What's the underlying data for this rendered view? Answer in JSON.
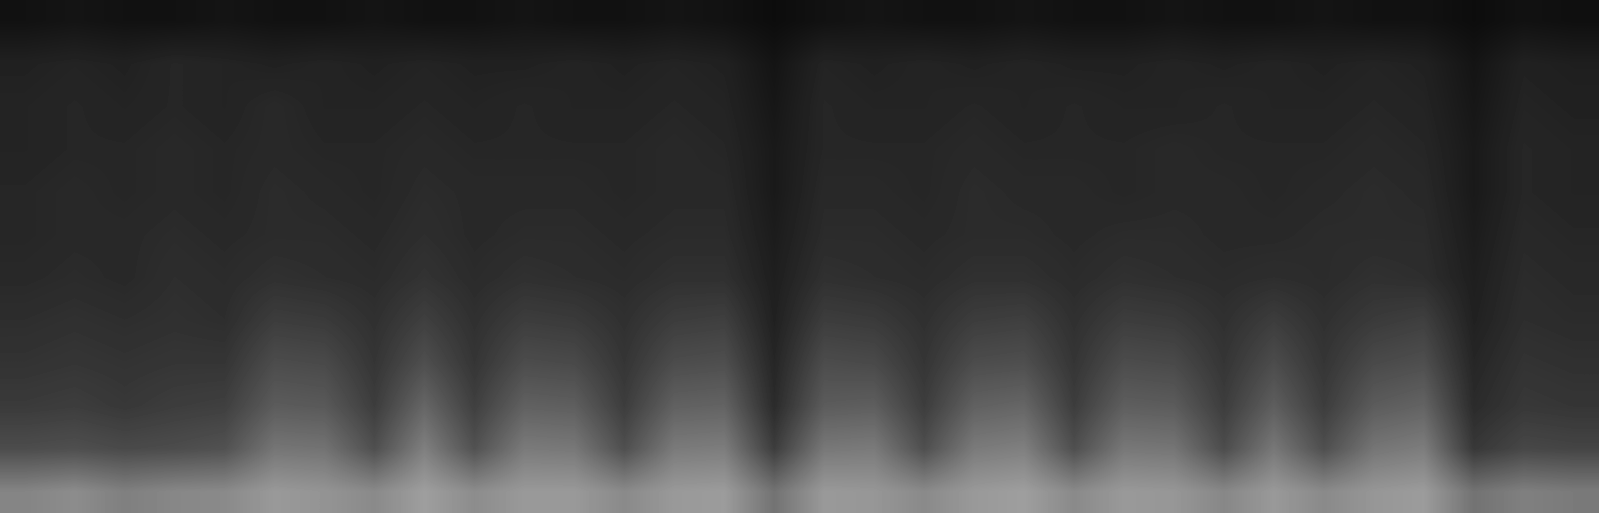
{
  "chart_data": {
    "type": "heatmap",
    "color": "gray",
    "tick_labels": false,
    "value_range": [
      0,
      1
    ],
    "cells": [
      [
        0.07,
        0.08,
        0.07,
        0.07,
        0.08,
        0.07,
        0.07,
        0.08,
        0.07,
        0.07,
        0.08,
        0.07,
        0.07,
        0.08,
        0.07,
        0.05,
        0.07,
        0.08,
        0.07,
        0.07,
        0.08,
        0.07,
        0.07,
        0.08,
        0.07,
        0.07,
        0.08,
        0.07,
        0.07,
        0.05,
        0.07,
        0.06
      ],
      [
        0.13,
        0.14,
        0.13,
        0.15,
        0.14,
        0.13,
        0.14,
        0.13,
        0.14,
        0.13,
        0.13,
        0.14,
        0.13,
        0.14,
        0.13,
        0.08,
        0.14,
        0.13,
        0.14,
        0.13,
        0.14,
        0.13,
        0.13,
        0.14,
        0.13,
        0.14,
        0.13,
        0.14,
        0.13,
        0.08,
        0.13,
        0.12
      ],
      [
        0.14,
        0.15,
        0.14,
        0.15,
        0.14,
        0.16,
        0.14,
        0.14,
        0.15,
        0.14,
        0.15,
        0.14,
        0.14,
        0.15,
        0.14,
        0.09,
        0.15,
        0.14,
        0.14,
        0.15,
        0.14,
        0.15,
        0.14,
        0.14,
        0.15,
        0.14,
        0.14,
        0.15,
        0.14,
        0.09,
        0.14,
        0.13
      ],
      [
        0.14,
        0.15,
        0.15,
        0.16,
        0.15,
        0.16,
        0.15,
        0.15,
        0.16,
        0.15,
        0.15,
        0.15,
        0.15,
        0.16,
        0.15,
        0.1,
        0.15,
        0.15,
        0.15,
        0.16,
        0.15,
        0.15,
        0.15,
        0.16,
        0.15,
        0.15,
        0.15,
        0.16,
        0.15,
        0.1,
        0.15,
        0.14
      ],
      [
        0.15,
        0.16,
        0.15,
        0.16,
        0.15,
        0.17,
        0.16,
        0.15,
        0.17,
        0.16,
        0.16,
        0.16,
        0.15,
        0.16,
        0.16,
        0.1,
        0.16,
        0.16,
        0.15,
        0.17,
        0.16,
        0.16,
        0.15,
        0.16,
        0.16,
        0.15,
        0.16,
        0.17,
        0.16,
        0.1,
        0.15,
        0.14
      ],
      [
        0.15,
        0.16,
        0.16,
        0.17,
        0.16,
        0.17,
        0.17,
        0.16,
        0.18,
        0.16,
        0.17,
        0.17,
        0.16,
        0.17,
        0.17,
        0.11,
        0.17,
        0.17,
        0.16,
        0.17,
        0.17,
        0.16,
        0.17,
        0.17,
        0.16,
        0.16,
        0.17,
        0.17,
        0.17,
        0.11,
        0.16,
        0.15
      ],
      [
        0.16,
        0.17,
        0.16,
        0.18,
        0.17,
        0.19,
        0.18,
        0.17,
        0.2,
        0.17,
        0.19,
        0.18,
        0.17,
        0.19,
        0.19,
        0.12,
        0.19,
        0.18,
        0.17,
        0.19,
        0.19,
        0.17,
        0.19,
        0.18,
        0.17,
        0.18,
        0.17,
        0.19,
        0.18,
        0.12,
        0.17,
        0.16
      ],
      [
        0.18,
        0.19,
        0.18,
        0.19,
        0.18,
        0.24,
        0.23,
        0.19,
        0.25,
        0.19,
        0.24,
        0.23,
        0.19,
        0.24,
        0.25,
        0.13,
        0.24,
        0.23,
        0.19,
        0.24,
        0.25,
        0.19,
        0.24,
        0.23,
        0.19,
        0.24,
        0.19,
        0.23,
        0.25,
        0.13,
        0.18,
        0.17
      ],
      [
        0.2,
        0.21,
        0.2,
        0.21,
        0.21,
        0.3,
        0.29,
        0.21,
        0.31,
        0.21,
        0.3,
        0.29,
        0.21,
        0.3,
        0.31,
        0.15,
        0.3,
        0.29,
        0.21,
        0.3,
        0.31,
        0.21,
        0.3,
        0.29,
        0.21,
        0.3,
        0.21,
        0.29,
        0.31,
        0.15,
        0.2,
        0.19
      ],
      [
        0.23,
        0.24,
        0.22,
        0.24,
        0.25,
        0.36,
        0.35,
        0.24,
        0.4,
        0.25,
        0.38,
        0.37,
        0.24,
        0.38,
        0.39,
        0.17,
        0.36,
        0.37,
        0.24,
        0.38,
        0.4,
        0.24,
        0.37,
        0.36,
        0.24,
        0.37,
        0.24,
        0.36,
        0.39,
        0.17,
        0.22,
        0.21
      ],
      [
        0.3,
        0.31,
        0.29,
        0.3,
        0.32,
        0.46,
        0.45,
        0.31,
        0.5,
        0.32,
        0.48,
        0.47,
        0.31,
        0.48,
        0.49,
        0.24,
        0.47,
        0.48,
        0.31,
        0.48,
        0.5,
        0.31,
        0.47,
        0.46,
        0.3,
        0.47,
        0.31,
        0.46,
        0.49,
        0.22,
        0.28,
        0.27
      ],
      [
        0.52,
        0.55,
        0.5,
        0.53,
        0.54,
        0.6,
        0.58,
        0.54,
        0.62,
        0.55,
        0.6,
        0.6,
        0.54,
        0.6,
        0.61,
        0.45,
        0.6,
        0.59,
        0.54,
        0.6,
        0.62,
        0.54,
        0.6,
        0.59,
        0.53,
        0.6,
        0.54,
        0.59,
        0.61,
        0.45,
        0.5,
        0.48
      ]
    ]
  }
}
